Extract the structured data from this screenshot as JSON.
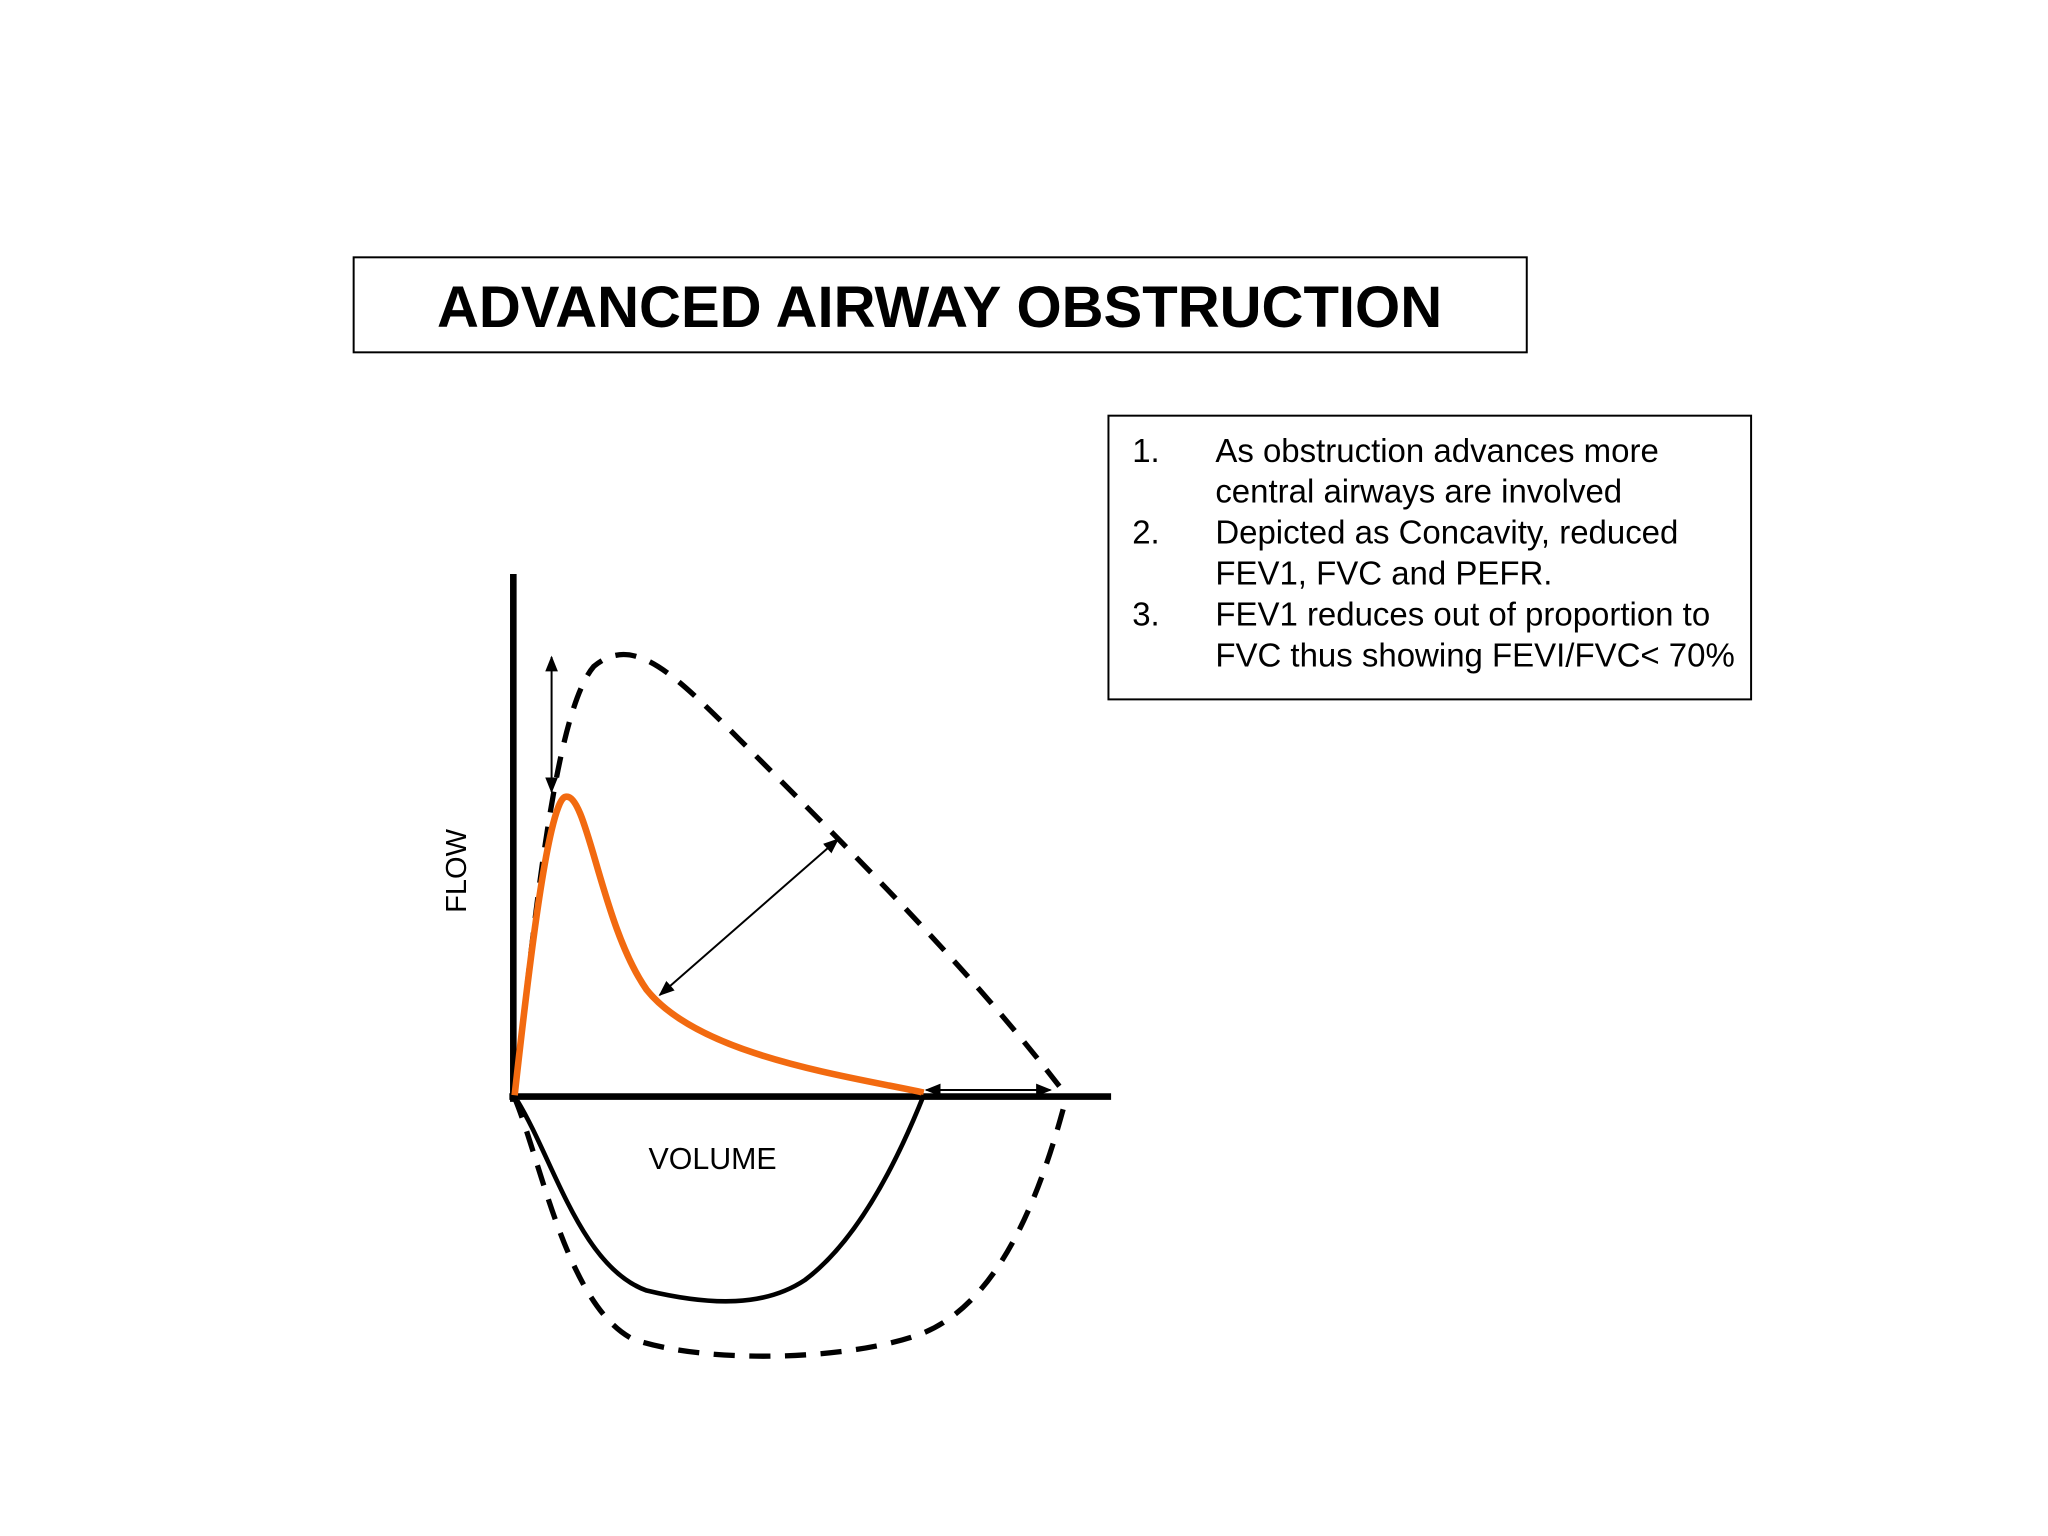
{
  "title": "ADVANCED AIRWAY OBSTRUCTION",
  "notes": [
    {
      "number": "1.",
      "lines": [
        "As obstruction advances more",
        "central airways are involved"
      ]
    },
    {
      "number": "2.",
      "lines": [
        "Depicted as Concavity, reduced",
        "FEV1, FVC and PEFR."
      ]
    },
    {
      "number": "3.",
      "lines": [
        "FEV1 reduces out of proportion to",
        "FVC thus showing FEVI/FVC< 70%"
      ]
    }
  ],
  "diagram": {
    "y_label": "FLOW",
    "x_label": "VOLUME"
  }
}
